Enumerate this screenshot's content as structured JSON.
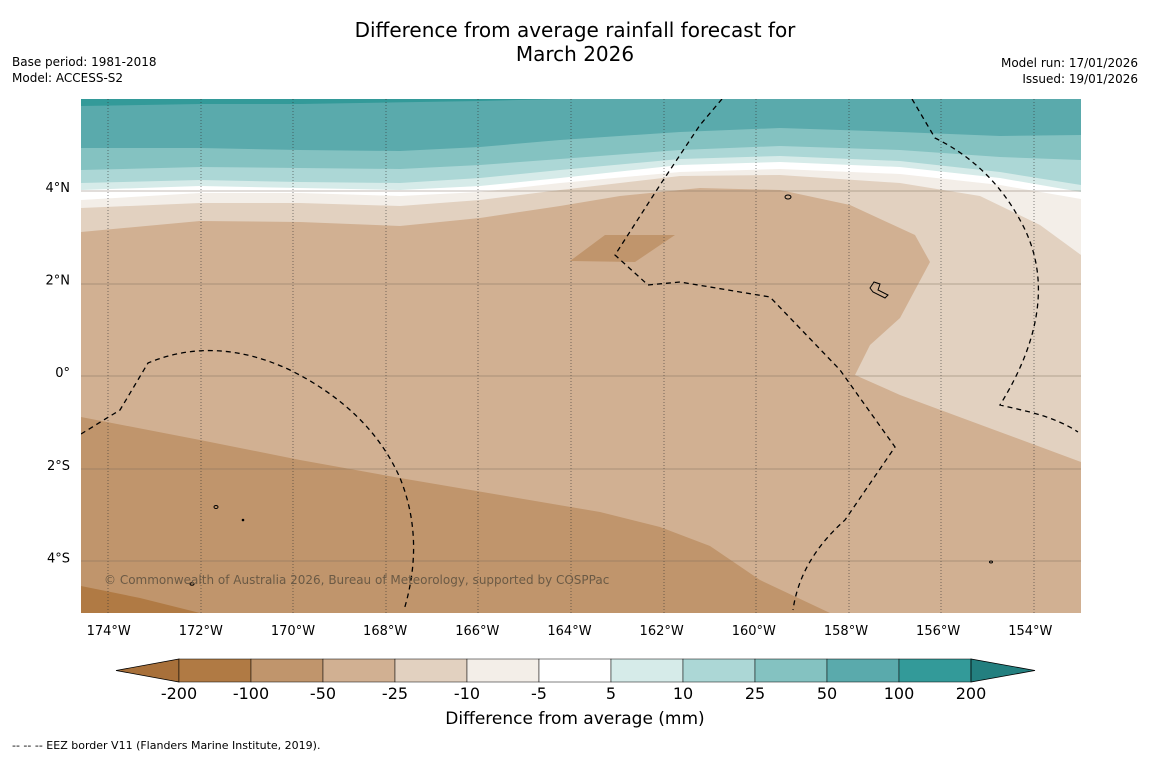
{
  "title": {
    "line1": "Difference from average rainfall forecast for",
    "line2": "March 2026"
  },
  "meta_left": {
    "base_period": "Base period: 1981-2018",
    "model": "Model: ACCESS-S2"
  },
  "meta_right": {
    "model_run": "Model run: 17/01/2026",
    "issued": "Issued: 19/01/2026"
  },
  "map": {
    "lon_range": [
      -174.6,
      -152.9
    ],
    "lat_range": [
      -5.2,
      5.9
    ],
    "lat_labels": [
      {
        "lat": 4,
        "label": "4°N"
      },
      {
        "lat": 2,
        "label": "2°N"
      },
      {
        "lat": 0,
        "label": "0°"
      },
      {
        "lat": -2,
        "label": "2°S"
      },
      {
        "lat": -4,
        "label": "4°S"
      }
    ],
    "lon_labels": [
      {
        "lon": -174,
        "label": "174°W"
      },
      {
        "lon": -172,
        "label": "172°W"
      },
      {
        "lon": -170,
        "label": "170°W"
      },
      {
        "lon": -168,
        "label": "168°W"
      },
      {
        "lon": -166,
        "label": "166°W"
      },
      {
        "lon": -164,
        "label": "164°W"
      },
      {
        "lon": -162,
        "label": "162°W"
      },
      {
        "lon": -160,
        "label": "160°W"
      },
      {
        "lon": -158,
        "label": "158°W"
      },
      {
        "lon": -156,
        "label": "156°W"
      },
      {
        "lon": -154,
        "label": "154°W"
      }
    ],
    "copyright": "© Commonwealth of Australia 2026, Bureau of Meteorology, supported by COSPPac"
  },
  "colorbar": {
    "title": "Difference from average (mm)",
    "ticks": [
      "-200",
      "-100",
      "-50",
      "-25",
      "-10",
      "-5",
      "5",
      "10",
      "25",
      "50",
      "100",
      "200"
    ],
    "colors": [
      "#a8703a",
      "#b07a44",
      "#c0956c",
      "#d1b092",
      "#e2d1c0",
      "#f3eee8",
      "#ffffff",
      "#d6ebe9",
      "#acd7d6",
      "#84c2c1",
      "#5aaaac",
      "#339a99",
      "#237f7f"
    ]
  },
  "footer": {
    "eez_note": "--  --  -- EEZ border V11 (Flanders Marine Institute, 2019)."
  }
}
